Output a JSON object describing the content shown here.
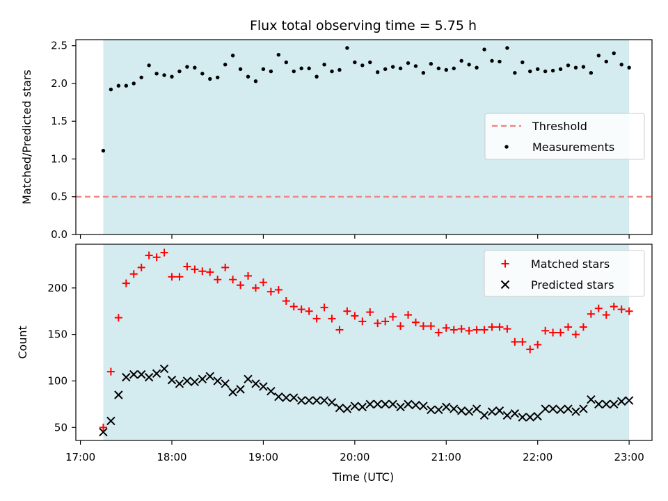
{
  "title": "Flux total observing time = 5.75 h",
  "colors": {
    "shade": "#d4ebf0",
    "threshold": "#f08080",
    "measurements": "#000000",
    "matched": "#ff0000",
    "predicted": "#000000"
  },
  "chart_data": [
    {
      "type": "scatter",
      "ylabel": "Matched/Predicted stars",
      "xlim": [
        "16:57",
        "23:15"
      ],
      "ylim": [
        0,
        2.58
      ],
      "yticks": [
        "0.0",
        "0.5",
        "1.0",
        "1.5",
        "2.0",
        "2.5"
      ],
      "shaded_span": [
        "17:15",
        "23:00"
      ],
      "legend": {
        "position": "center-right",
        "entries": [
          "Threshold",
          "Measurements"
        ]
      },
      "threshold": {
        "name": "Threshold",
        "value": 0.5
      },
      "series": [
        {
          "name": "Measurements",
          "x": [
            "17:15",
            "17:20",
            "17:25",
            "17:30",
            "17:35",
            "17:40",
            "17:45",
            "17:50",
            "17:55",
            "18:00",
            "18:05",
            "18:10",
            "18:15",
            "18:20",
            "18:25",
            "18:30",
            "18:35",
            "18:40",
            "18:45",
            "18:50",
            "18:55",
            "19:00",
            "19:05",
            "19:10",
            "19:15",
            "19:20",
            "19:25",
            "19:30",
            "19:35",
            "19:40",
            "19:45",
            "19:50",
            "19:55",
            "20:00",
            "20:05",
            "20:10",
            "20:15",
            "20:20",
            "20:25",
            "20:30",
            "20:35",
            "20:40",
            "20:45",
            "20:50",
            "20:55",
            "21:00",
            "21:05",
            "21:10",
            "21:15",
            "21:20",
            "21:25",
            "21:30",
            "21:35",
            "21:40",
            "21:45",
            "21:50",
            "21:55",
            "22:00",
            "22:05",
            "22:10",
            "22:15",
            "22:20",
            "22:25",
            "22:30",
            "22:35",
            "22:40",
            "22:45",
            "22:50",
            "22:55",
            "23:00"
          ],
          "y": [
            1.11,
            1.92,
            1.97,
            1.97,
            2.0,
            2.08,
            2.24,
            2.13,
            2.11,
            2.09,
            2.16,
            2.22,
            2.21,
            2.13,
            2.06,
            2.08,
            2.25,
            2.37,
            2.19,
            2.09,
            2.03,
            2.19,
            2.16,
            2.38,
            2.28,
            2.16,
            2.2,
            2.2,
            2.09,
            2.25,
            2.16,
            2.18,
            2.47,
            2.28,
            2.24,
            2.28,
            2.15,
            2.19,
            2.22,
            2.2,
            2.27,
            2.23,
            2.14,
            2.26,
            2.2,
            2.18,
            2.2,
            2.3,
            2.25,
            2.21,
            2.45,
            2.3,
            2.29,
            2.47,
            2.14,
            2.28,
            2.16,
            2.19,
            2.16,
            2.17,
            2.19,
            2.24,
            2.21,
            2.22,
            2.14,
            2.37,
            2.29,
            2.4,
            2.25,
            2.21
          ]
        }
      ]
    },
    {
      "type": "scatter",
      "ylabel": "Count",
      "xlabel": "Time (UTC)",
      "xlim": [
        "16:57",
        "23:15"
      ],
      "ylim": [
        36,
        247
      ],
      "yticks": [
        "50",
        "100",
        "150",
        "200"
      ],
      "xticks": [
        "17:00",
        "18:00",
        "19:00",
        "20:00",
        "21:00",
        "22:00",
        "23:00"
      ],
      "shaded_span": [
        "17:15",
        "23:00"
      ],
      "legend": {
        "position": "upper-right",
        "entries": [
          "Matched stars",
          "Predicted stars"
        ]
      },
      "series": [
        {
          "name": "Matched stars",
          "marker": "plus",
          "x": [
            "17:15",
            "17:20",
            "17:25",
            "17:30",
            "17:35",
            "17:40",
            "17:45",
            "17:50",
            "17:55",
            "18:00",
            "18:05",
            "18:10",
            "18:15",
            "18:20",
            "18:25",
            "18:30",
            "18:35",
            "18:40",
            "18:45",
            "18:50",
            "18:55",
            "19:00",
            "19:05",
            "19:10",
            "19:15",
            "19:20",
            "19:25",
            "19:30",
            "19:35",
            "19:40",
            "19:45",
            "19:50",
            "19:55",
            "20:00",
            "20:05",
            "20:10",
            "20:15",
            "20:20",
            "20:25",
            "20:30",
            "20:35",
            "20:40",
            "20:45",
            "20:50",
            "20:55",
            "21:00",
            "21:05",
            "21:10",
            "21:15",
            "21:20",
            "21:25",
            "21:30",
            "21:35",
            "21:40",
            "21:45",
            "21:50",
            "21:55",
            "22:00",
            "22:05",
            "22:10",
            "22:15",
            "22:20",
            "22:25",
            "22:30",
            "22:35",
            "22:40",
            "22:45",
            "22:50",
            "22:55",
            "23:00"
          ],
          "y": [
            50,
            110,
            168,
            205,
            215,
            222,
            235,
            233,
            238,
            212,
            212,
            223,
            220,
            218,
            217,
            209,
            222,
            209,
            203,
            213,
            200,
            206,
            196,
            198,
            186,
            180,
            177,
            175,
            167,
            179,
            167,
            155,
            175,
            170,
            164,
            174,
            162,
            164,
            169,
            159,
            171,
            163,
            159,
            159,
            152,
            157,
            155,
            156,
            154,
            155,
            155,
            158,
            158,
            156,
            142,
            142,
            134,
            139,
            154,
            152,
            152,
            158,
            150,
            158,
            172,
            178,
            171,
            180,
            177,
            175
          ]
        },
        {
          "name": "Predicted stars",
          "marker": "x",
          "x": [
            "17:15",
            "17:20",
            "17:25",
            "17:30",
            "17:35",
            "17:40",
            "17:45",
            "17:50",
            "17:55",
            "18:00",
            "18:05",
            "18:10",
            "18:15",
            "18:20",
            "18:25",
            "18:30",
            "18:35",
            "18:40",
            "18:45",
            "18:50",
            "18:55",
            "19:00",
            "19:05",
            "19:10",
            "19:15",
            "19:20",
            "19:25",
            "19:30",
            "19:35",
            "19:40",
            "19:45",
            "19:50",
            "19:55",
            "20:00",
            "20:05",
            "20:10",
            "20:15",
            "20:20",
            "20:25",
            "20:30",
            "20:35",
            "20:40",
            "20:45",
            "20:50",
            "20:55",
            "21:00",
            "21:05",
            "21:10",
            "21:15",
            "21:20",
            "21:25",
            "21:30",
            "21:35",
            "21:40",
            "21:45",
            "21:50",
            "21:55",
            "22:00",
            "22:05",
            "22:10",
            "22:15",
            "22:20",
            "22:25",
            "22:30",
            "22:35",
            "22:40",
            "22:45",
            "22:50",
            "22:55",
            "23:00"
          ],
          "y": [
            45,
            57,
            85,
            104,
            107,
            107,
            104,
            108,
            113,
            101,
            97,
            100,
            99,
            102,
            105,
            100,
            97,
            88,
            91,
            102,
            97,
            94,
            89,
            83,
            82,
            82,
            79,
            79,
            79,
            79,
            77,
            71,
            70,
            73,
            72,
            75,
            75,
            75,
            75,
            72,
            75,
            74,
            73,
            69,
            69,
            72,
            70,
            68,
            67,
            70,
            63,
            67,
            68,
            63,
            65,
            61,
            61,
            62,
            70,
            70,
            69,
            70,
            67,
            70,
            80,
            75,
            75,
            75,
            78,
            79
          ]
        }
      ]
    }
  ]
}
